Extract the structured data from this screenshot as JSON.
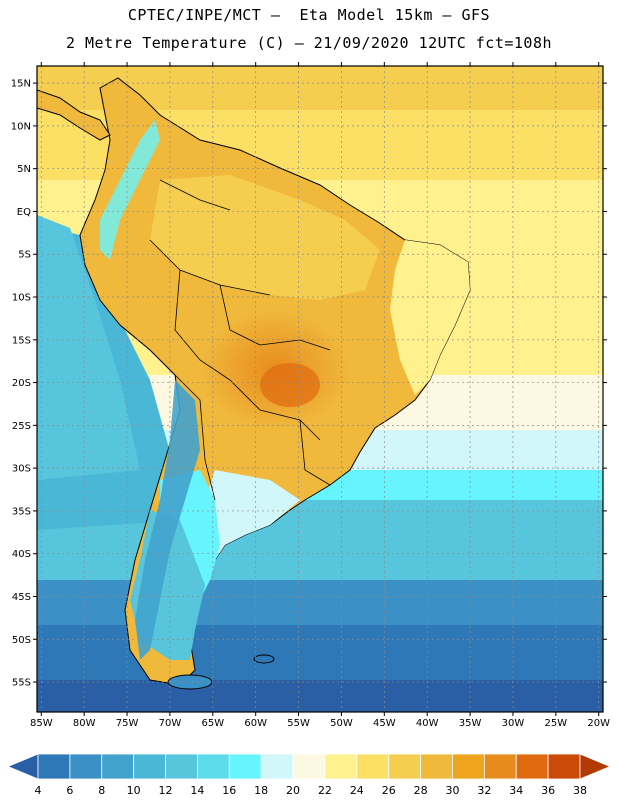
{
  "header": {
    "line1": "CPTEC/INPE/MCT –  Eta Model 15km – GFS",
    "line2": "2 Metre Temperature (C) – 21/09/2020 12UTC fct=108h"
  },
  "map": {
    "lat_labels": [
      "15N",
      "10N",
      "5N",
      "EQ",
      "5S",
      "10S",
      "15S",
      "20S",
      "25S",
      "30S",
      "35S",
      "40S",
      "45S",
      "50S",
      "55S"
    ],
    "lat_values": [
      15,
      10,
      5,
      0,
      -5,
      -10,
      -15,
      -20,
      -25,
      -30,
      -35,
      -40,
      -45,
      -50,
      -55
    ],
    "lon_labels": [
      "85W",
      "80W",
      "75W",
      "70W",
      "65W",
      "60W",
      "55W",
      "50W",
      "45W",
      "40W",
      "35W",
      "30W",
      "25W",
      "20W"
    ],
    "lon_values": [
      -85,
      -80,
      -75,
      -70,
      -65,
      -60,
      -55,
      -50,
      -45,
      -40,
      -35,
      -30,
      -25,
      -20
    ],
    "lon_range": [
      -85.5,
      -19.5
    ],
    "lat_range": [
      -58.5,
      17
    ]
  },
  "colorbar": {
    "labels": [
      "4",
      "6",
      "8",
      "10",
      "12",
      "14",
      "16",
      "18",
      "20",
      "22",
      "24",
      "26",
      "28",
      "30",
      "32",
      "34",
      "36",
      "38"
    ],
    "colors": [
      "#2a5fa5",
      "#2f78b8",
      "#3b90c6",
      "#41a3cd",
      "#4bb7d6",
      "#57c6dd",
      "#5cdcea",
      "#66f5ff",
      "#d2f7fb",
      "#fdf8e1",
      "#fff28e",
      "#fbe065",
      "#f5ce4f",
      "#f0b93c",
      "#eea41c",
      "#e88b1d",
      "#e06a0f",
      "#cc4a08",
      "#b33a04"
    ]
  }
}
